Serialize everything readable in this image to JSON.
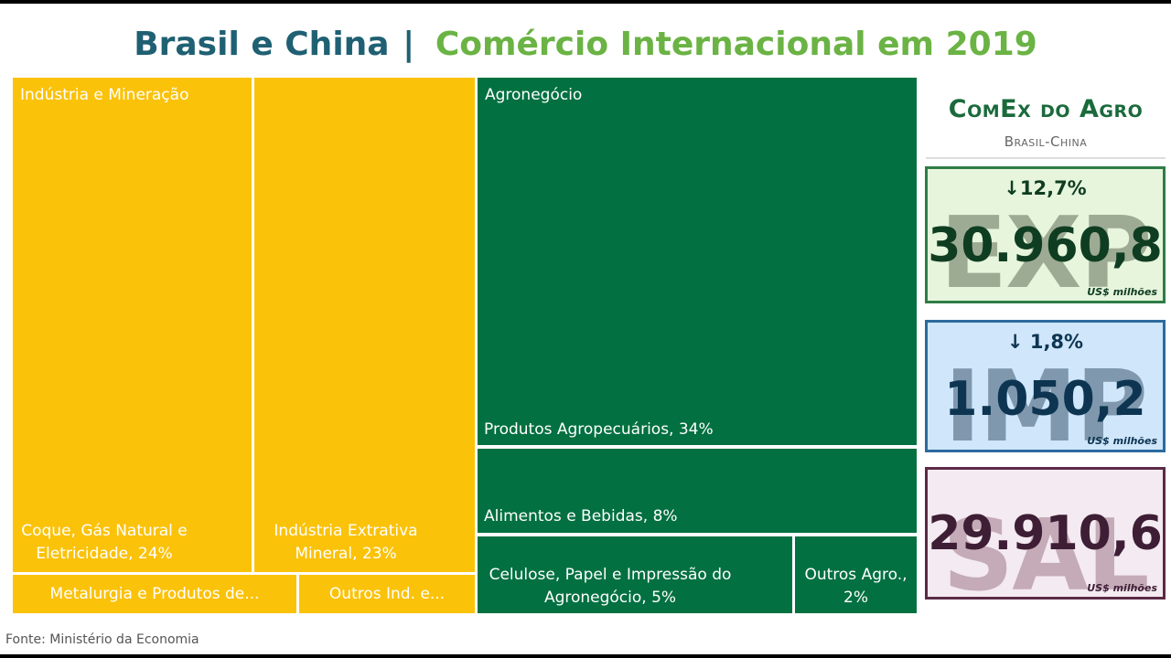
{
  "title": {
    "main": "Brasil e China",
    "separator": "|",
    "secondary": "Comércio Internacional em 2019"
  },
  "source": "Fonte: Ministério da Economia",
  "colors": {
    "industry": "#fbc20a",
    "agro": "#027040",
    "title_main": "#1f6073",
    "title_secondary": "#6ab344"
  },
  "chart_data": {
    "type": "treemap",
    "groups": [
      {
        "name": "Indústria e Mineração",
        "color": "#fbc20a",
        "items": [
          {
            "label": "Coque, Gás Natural e Eletricidade, 24%",
            "value": 24
          },
          {
            "label": "Indústria Extrativa Mineral, 23%",
            "value": 23
          },
          {
            "label": "Metalurgia e Produtos de...",
            "value": null
          },
          {
            "label": "Outros Ind. e...",
            "value": null
          }
        ]
      },
      {
        "name": "Agronegócio",
        "color": "#027040",
        "items": [
          {
            "label": "Produtos Agropecuários, 34%",
            "value": 34
          },
          {
            "label": "Alimentos e Bebidas, 8%",
            "value": 8
          },
          {
            "label": "Celulose, Papel e Impressão do Agronegócio, 5%",
            "value": 5
          },
          {
            "label": "Outros Agro., 2%",
            "value": 2
          }
        ]
      }
    ]
  },
  "panel": {
    "title": "ComEx do Agro",
    "subtitle": "Brasil-China",
    "cards": [
      {
        "bg_text": "EXP",
        "change": "↓12,7%",
        "value": "30.960,8",
        "unit": "US$ milhões",
        "fill": "#e6f5dc",
        "border": "#2e7d46",
        "bg_color": "#9eab94",
        "value_color": "#0f3d22",
        "change_color": "#0f3d22"
      },
      {
        "bg_text": "IMP",
        "change": "↓ 1,8%",
        "value": "1.050,2",
        "unit": "US$ milhões",
        "fill": "#cfe6fb",
        "border": "#2c6a9e",
        "bg_color": "#7f98ad",
        "value_color": "#0d3552",
        "change_color": "#0d3552"
      },
      {
        "bg_text": "SAL",
        "change": "",
        "value": "29.910,6",
        "unit": "US$ milhões",
        "fill": "#f4eaf1",
        "border": "#5b2a47",
        "bg_color": "#c5aab8",
        "value_color": "#3d1e35",
        "change_color": "#3d1e35"
      }
    ]
  }
}
